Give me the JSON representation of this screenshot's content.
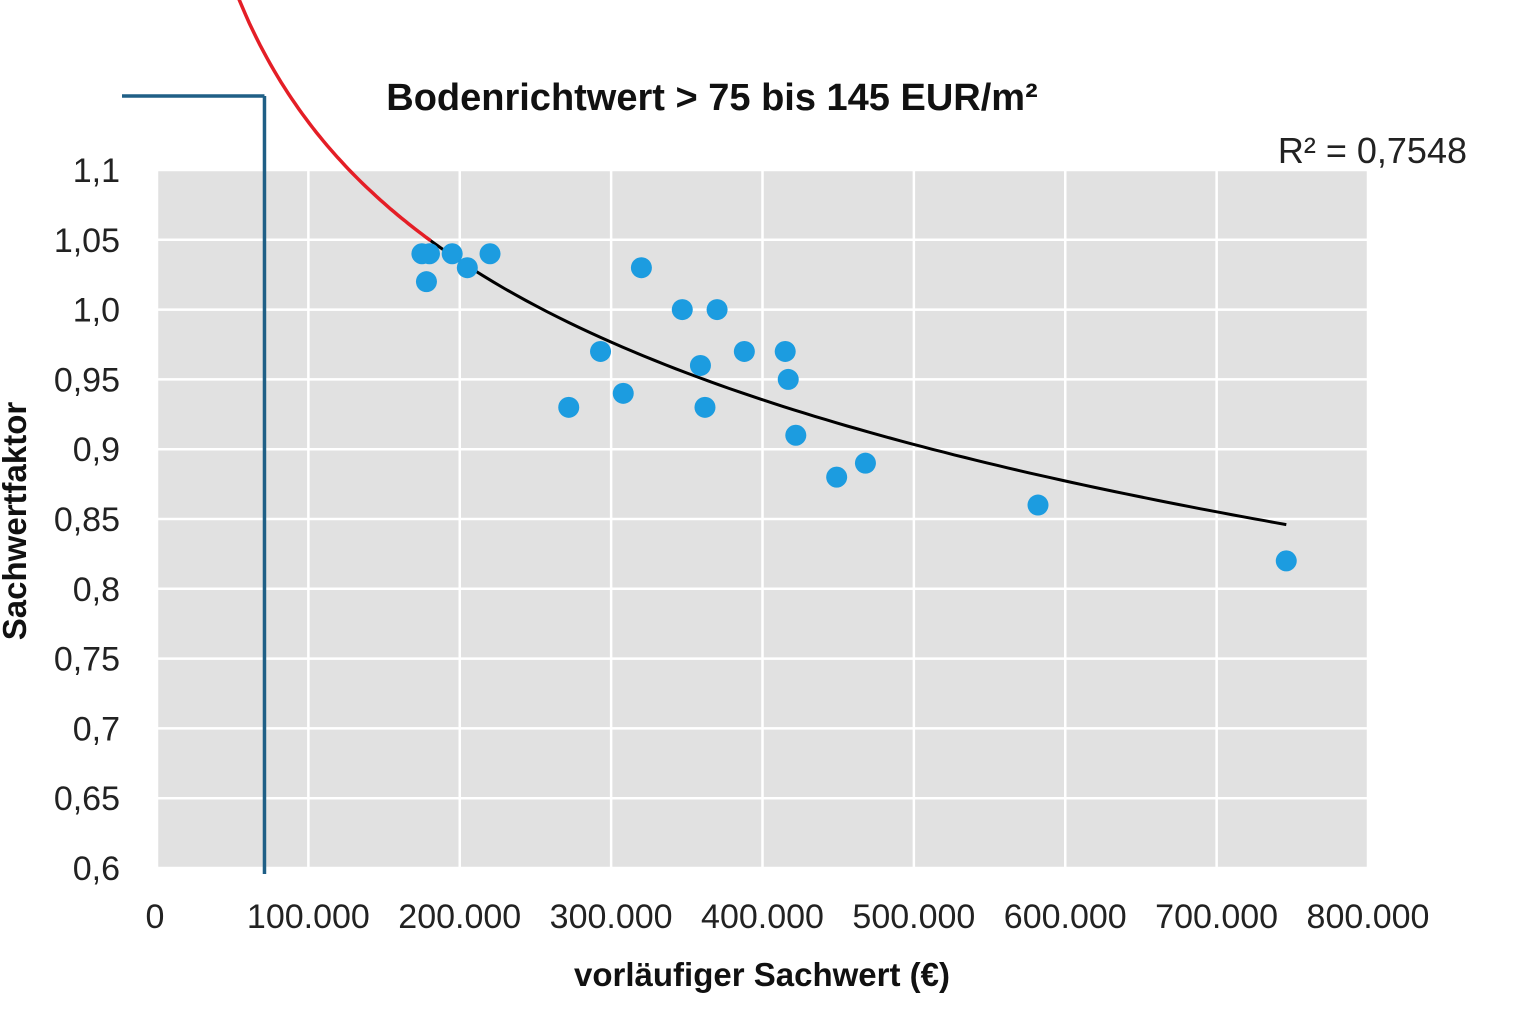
{
  "chart_data": {
    "type": "scatter",
    "title": "Bodenrichtwert > 75 bis 145 EUR/m²",
    "xlabel": "vorläufiger Sachwert (€)",
    "ylabel": "Sachwertfaktor",
    "r_squared_label": "R² = 0,7548",
    "xlim": [
      0,
      800000
    ],
    "ylim": [
      0.6,
      1.1
    ],
    "x_ticks": [
      0,
      100000,
      200000,
      300000,
      400000,
      500000,
      600000,
      700000,
      800000
    ],
    "x_tick_labels": [
      "0",
      "100.000",
      "200.000",
      "300.000",
      "400.000",
      "500.000",
      "600.000",
      "700.000",
      "800.000"
    ],
    "y_ticks": [
      0.6,
      0.65,
      0.7,
      0.75,
      0.8,
      0.85,
      0.9,
      0.95,
      1.0,
      1.05,
      1.1
    ],
    "y_tick_labels": [
      "0,6",
      "0,65",
      "0,7",
      "0,75",
      "0,8",
      "0,85",
      "0,9",
      "0,95",
      "1,0",
      "1,05",
      "1,1"
    ],
    "grid": true,
    "points": [
      {
        "x": 175000,
        "y": 1.04
      },
      {
        "x": 180000,
        "y": 1.04
      },
      {
        "x": 178000,
        "y": 1.02
      },
      {
        "x": 195000,
        "y": 1.04
      },
      {
        "x": 205000,
        "y": 1.03
      },
      {
        "x": 220000,
        "y": 1.04
      },
      {
        "x": 272000,
        "y": 0.93
      },
      {
        "x": 293000,
        "y": 0.97
      },
      {
        "x": 308000,
        "y": 0.94
      },
      {
        "x": 320000,
        "y": 1.03
      },
      {
        "x": 347000,
        "y": 1.0
      },
      {
        "x": 359000,
        "y": 0.96
      },
      {
        "x": 362000,
        "y": 0.93
      },
      {
        "x": 370000,
        "y": 1.0
      },
      {
        "x": 388000,
        "y": 0.97
      },
      {
        "x": 415000,
        "y": 0.97
      },
      {
        "x": 417000,
        "y": 0.95
      },
      {
        "x": 422000,
        "y": 0.91
      },
      {
        "x": 449000,
        "y": 0.88
      },
      {
        "x": 468000,
        "y": 0.89
      },
      {
        "x": 582000,
        "y": 0.86
      },
      {
        "x": 746000,
        "y": 0.82
      }
    ],
    "trendline": {
      "type": "logarithmic",
      "x_range": [
        180000,
        746000
      ],
      "points": [
        {
          "x": 180000,
          "y": 1.05
        },
        {
          "x": 746000,
          "y": 0.846
        }
      ]
    },
    "extrapolation": {
      "x_range": [
        40000,
        180000
      ],
      "points": [
        {
          "x": 40000,
          "y": 1.19
        },
        {
          "x": 180000,
          "y": 1.05
        }
      ]
    },
    "reference_lines": {
      "x": 71000,
      "y": 1.153
    },
    "colors": {
      "plot_background": "#e1e1e1",
      "grid": "#ffffff",
      "points": "#1c9ce0",
      "trendline": "#000000",
      "extrapolation": "#e41e26",
      "reference": "#1f5f86"
    }
  }
}
